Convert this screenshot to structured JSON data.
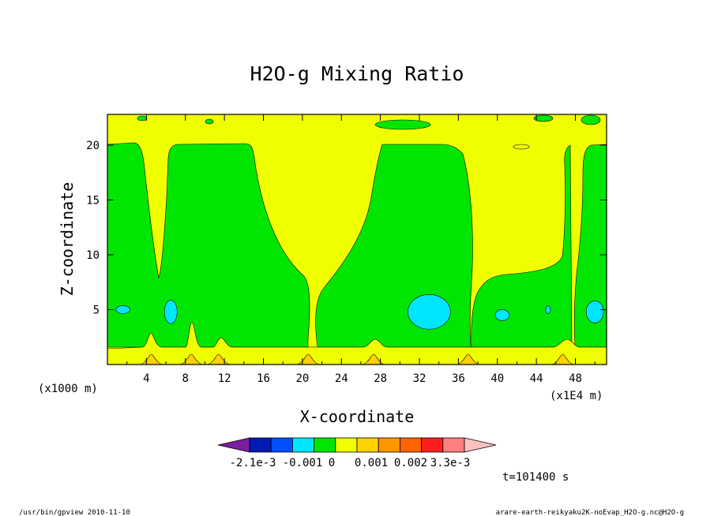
{
  "chart_data": {
    "type": "heatmap",
    "title": "H2O-g Mixing Ratio",
    "xlabel": "X-coordinate",
    "ylabel": "Z-coordinate",
    "x_units": "(x1E4 m)",
    "y_units": "(x1000 m)",
    "xlim": [
      0,
      51.2
    ],
    "ylim": [
      0,
      22.8
    ],
    "x_ticks": [
      "4",
      "8",
      "12",
      "16",
      "20",
      "24",
      "28",
      "32",
      "36",
      "40",
      "44",
      "48"
    ],
    "y_ticks": [
      "5",
      "10",
      "15",
      "20"
    ],
    "colorbar": {
      "tick_labels": [
        "-2.1e-3",
        "-0.001",
        "0",
        "0.001",
        "0.002",
        "3.3e-3"
      ],
      "colors": [
        "#7a1ea0",
        "#001ab4",
        "#0050ff",
        "#00e6ff",
        "#00e600",
        "#f0ff00",
        "#ffd200",
        "#ff9600",
        "#ff6400",
        "#ff1e1e",
        "#ff8080",
        "#ffc0c0"
      ],
      "extend": "both"
    },
    "fields": {
      "background": {
        "color": "#f0ff00"
      },
      "bottom_band": {
        "z_top": 1.5,
        "color": "#f0ff00"
      },
      "green_columns": [
        {
          "x_from": 0.5,
          "x_to": 5.5,
          "z_from": 1.5,
          "z_to": 20.3,
          "color": "#00e600"
        },
        {
          "x_from": 6.1,
          "x_to": 20.5,
          "z_from": 1.5,
          "z_to": 20.3,
          "color": "#00e600"
        },
        {
          "x_from": 21.5,
          "x_to": 37.2,
          "z_from": 1.5,
          "z_to": 20.3,
          "color": "#00e600"
        },
        {
          "x_from": 37.5,
          "x_to": 46.4,
          "z_from": 1.5,
          "z_to": 20.3,
          "color": "#00e600"
        },
        {
          "x_from": 47.2,
          "x_to": 51.2,
          "z_from": 1.5,
          "z_to": 20.3,
          "color": "#00e600"
        }
      ],
      "cyan_cells": [
        {
          "x": 33.0,
          "z": 4.8,
          "color": "#00e6ff"
        },
        {
          "x": 6.5,
          "z": 4.8,
          "color": "#00e6ff"
        },
        {
          "x": 1.6,
          "z": 5.0,
          "color": "#00e6ff"
        },
        {
          "x": 50.0,
          "z": 4.8,
          "color": "#00e6ff"
        },
        {
          "x": 40.5,
          "z": 4.5,
          "color": "#00e6ff"
        },
        {
          "x": 45.2,
          "z": 5.0,
          "color": "#00e6ff"
        }
      ],
      "orange_spikes": [
        {
          "x": 4.5,
          "color": "#ffd200"
        },
        {
          "x": 8.6,
          "color": "#ffd200"
        },
        {
          "x": 11.4,
          "color": "#ffd200"
        },
        {
          "x": 20.6,
          "color": "#ffd200"
        },
        {
          "x": 27.3,
          "color": "#ffd200"
        },
        {
          "x": 37.0,
          "color": "#ffd200"
        },
        {
          "x": 46.7,
          "color": "#ffd200"
        }
      ]
    },
    "time_label": "t=101400 s",
    "grid": false,
    "legend": "bottom colorbar"
  },
  "footer": {
    "left": "/usr/bin/gpview  2010-11-10",
    "right": "arare-earth-reikyaku2K-noEvap_H2O-g.nc@H2O-g"
  }
}
